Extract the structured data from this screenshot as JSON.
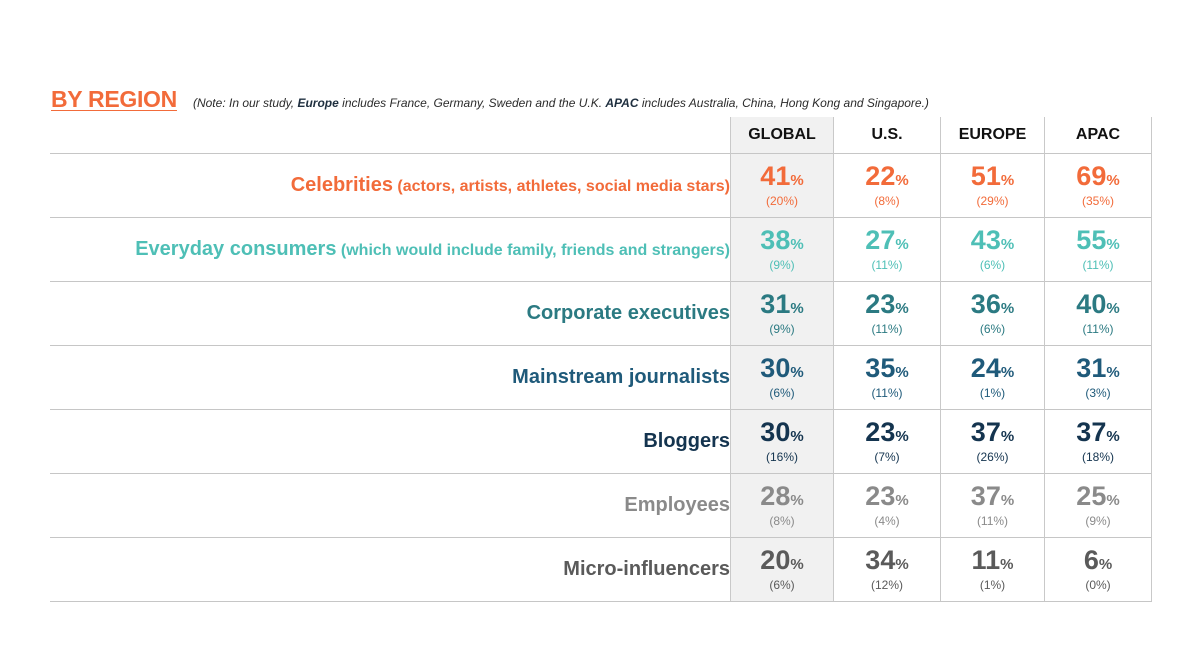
{
  "header": {
    "title": "BY REGION",
    "note_prefix": "(Note: In our study, ",
    "note_europe": "Europe",
    "note_mid": " includes France, Germany, Sweden and the U.K. ",
    "note_apac": "APAC",
    "note_suffix": " includes Australia, China, Hong Kong and Singapore.)"
  },
  "columns": [
    "GLOBAL",
    "U.S.",
    "EUROPE",
    "APAC"
  ],
  "percent_sign": "%",
  "rows": [
    {
      "label": "Celebrities",
      "sublabel": " (actors, artists, athletes, social media stars)",
      "color": "#f26b3a",
      "cells": [
        {
          "v": "41",
          "p": "(20%)"
        },
        {
          "v": "22",
          "p": "(8%)"
        },
        {
          "v": "51",
          "p": "(29%)"
        },
        {
          "v": "69",
          "p": "(35%)"
        }
      ]
    },
    {
      "label": "Everyday consumers",
      "sublabel": " (which would include family, friends and strangers)",
      "color": "#4ebfb6",
      "cells": [
        {
          "v": "38",
          "p": "(9%)"
        },
        {
          "v": "27",
          "p": "(11%)"
        },
        {
          "v": "43",
          "p": "(6%)"
        },
        {
          "v": "55",
          "p": "(11%)"
        }
      ]
    },
    {
      "label": "Corporate executives",
      "sublabel": "",
      "color": "#2b7a82",
      "cells": [
        {
          "v": "31",
          "p": "(9%)"
        },
        {
          "v": "23",
          "p": "(11%)"
        },
        {
          "v": "36",
          "p": "(6%)"
        },
        {
          "v": "40",
          "p": "(11%)"
        }
      ]
    },
    {
      "label": "Mainstream journalists",
      "sublabel": "",
      "color": "#1f5a7a",
      "cells": [
        {
          "v": "30",
          "p": "(6%)"
        },
        {
          "v": "35",
          "p": "(11%)"
        },
        {
          "v": "24",
          "p": "(1%)"
        },
        {
          "v": "31",
          "p": "(3%)"
        }
      ]
    },
    {
      "label": "Bloggers",
      "sublabel": "",
      "color": "#14344f",
      "cells": [
        {
          "v": "30",
          "p": "(16%)"
        },
        {
          "v": "23",
          "p": "(7%)"
        },
        {
          "v": "37",
          "p": "(26%)"
        },
        {
          "v": "37",
          "p": "(18%)"
        }
      ]
    },
    {
      "label": "Employees",
      "sublabel": "",
      "color": "#8a8a8a",
      "cells": [
        {
          "v": "28",
          "p": "(8%)"
        },
        {
          "v": "23",
          "p": "(4%)"
        },
        {
          "v": "37",
          "p": "(11%)"
        },
        {
          "v": "25",
          "p": "(9%)"
        }
      ]
    },
    {
      "label": "Micro-influencers",
      "sublabel": "",
      "color": "#5a5a5a",
      "cells": [
        {
          "v": "20",
          "p": "(6%)"
        },
        {
          "v": "34",
          "p": "(12%)"
        },
        {
          "v": "11",
          "p": "(1%)"
        },
        {
          "v": "6",
          "p": "(0%)"
        }
      ]
    }
  ],
  "chart_data": {
    "type": "table",
    "title": "BY REGION",
    "columns": [
      "GLOBAL",
      "U.S.",
      "EUROPE",
      "APAC"
    ],
    "rows": [
      "Celebrities",
      "Everyday consumers",
      "Corporate executives",
      "Mainstream journalists",
      "Bloggers",
      "Employees",
      "Micro-influencers"
    ],
    "values": [
      [
        41,
        22,
        51,
        69
      ],
      [
        38,
        27,
        43,
        55
      ],
      [
        31,
        23,
        36,
        40
      ],
      [
        30,
        35,
        24,
        31
      ],
      [
        30,
        23,
        37,
        37
      ],
      [
        28,
        23,
        37,
        25
      ],
      [
        20,
        34,
        11,
        6
      ]
    ],
    "secondary_values": [
      [
        20,
        8,
        29,
        35
      ],
      [
        9,
        11,
        6,
        11
      ],
      [
        9,
        11,
        6,
        11
      ],
      [
        6,
        11,
        1,
        3
      ],
      [
        16,
        7,
        26,
        18
      ],
      [
        8,
        4,
        11,
        9
      ],
      [
        6,
        12,
        1,
        0
      ]
    ]
  }
}
